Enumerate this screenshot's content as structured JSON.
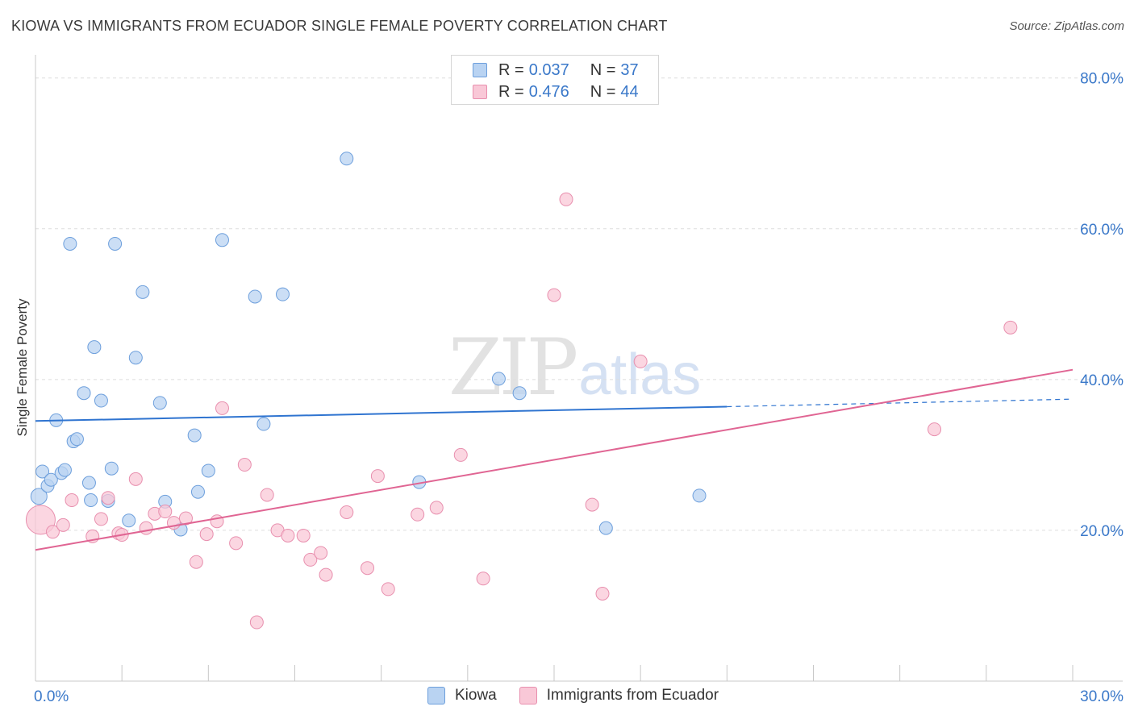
{
  "title": "KIOWA VS IMMIGRANTS FROM ECUADOR SINGLE FEMALE POVERTY CORRELATION CHART",
  "source": "Source: ZipAtlas.com",
  "watermark": {
    "part1": "ZIP",
    "part2": "atlas"
  },
  "legend_top": {
    "rows": [
      {
        "r_label": "R =",
        "r_value": "0.037",
        "n_label": "N =",
        "n_value": "37"
      },
      {
        "r_label": "R =",
        "r_value": "0.476",
        "n_label": "N =",
        "n_value": "44"
      }
    ]
  },
  "legend_bottom": {
    "items": [
      "Kiowa",
      "Immigrants from Ecuador"
    ]
  },
  "colors": {
    "kiowa_fill": "#b9d3f2",
    "kiowa_stroke": "#6d9fdc",
    "kiowa_line": "#2f74d0",
    "ecuador_fill": "#f9c8d7",
    "ecuador_stroke": "#e88fae",
    "ecuador_line": "#e06593",
    "tick_label": "#3a78c9",
    "grid": "#dedede"
  },
  "chart_data": {
    "type": "scatter",
    "title": "KIOWA VS IMMIGRANTS FROM ECUADOR SINGLE FEMALE POVERTY CORRELATION CHART",
    "xlabel": "",
    "ylabel": "Single Female Poverty",
    "xlim": [
      0,
      30
    ],
    "ylim": [
      0,
      82
    ],
    "x_tick_labels": [
      {
        "value": 0,
        "label": "0.0%"
      },
      {
        "value": 30,
        "label": "30.0%"
      }
    ],
    "y_tick_labels": [
      {
        "value": 20,
        "label": "20.0%"
      },
      {
        "value": 40,
        "label": "40.0%"
      },
      {
        "value": 60,
        "label": "60.0%"
      },
      {
        "value": 80,
        "label": "80.0%"
      }
    ],
    "series": [
      {
        "name": "Kiowa",
        "r": 0.037,
        "n": 37,
        "trend": {
          "x_start": 0,
          "y_start": 34.5,
          "x_solid_end": 20,
          "y_solid_end": 36.4,
          "x_end": 30,
          "y_end": 37.4
        },
        "points": [
          [
            0.1,
            24.5,
            10
          ],
          [
            0.2,
            27.8,
            8
          ],
          [
            0.35,
            25.9,
            8
          ],
          [
            0.45,
            26.7,
            8
          ],
          [
            0.6,
            34.6,
            8
          ],
          [
            0.75,
            27.6,
            8
          ],
          [
            0.85,
            28.0,
            8
          ],
          [
            1.0,
            58.0,
            8
          ],
          [
            1.1,
            31.8,
            8
          ],
          [
            1.2,
            32.1,
            8
          ],
          [
            1.4,
            38.2,
            8
          ],
          [
            1.55,
            26.3,
            8
          ],
          [
            1.6,
            24.0,
            8
          ],
          [
            1.7,
            44.3,
            8
          ],
          [
            1.9,
            37.2,
            8
          ],
          [
            2.1,
            23.9,
            8
          ],
          [
            2.2,
            28.2,
            8
          ],
          [
            2.3,
            58.0,
            8
          ],
          [
            2.7,
            21.3,
            8
          ],
          [
            2.9,
            42.9,
            8
          ],
          [
            3.1,
            51.6,
            8
          ],
          [
            3.6,
            36.9,
            8
          ],
          [
            3.75,
            23.8,
            8
          ],
          [
            4.2,
            20.1,
            8
          ],
          [
            4.6,
            32.6,
            8
          ],
          [
            4.7,
            25.1,
            8
          ],
          [
            5.0,
            27.9,
            8
          ],
          [
            5.4,
            58.5,
            8
          ],
          [
            6.35,
            51.0,
            8
          ],
          [
            6.6,
            34.1,
            8
          ],
          [
            7.15,
            51.3,
            8
          ],
          [
            9.0,
            69.3,
            8
          ],
          [
            11.1,
            26.4,
            8
          ],
          [
            13.4,
            40.1,
            8
          ],
          [
            14.0,
            38.2,
            8
          ],
          [
            16.5,
            20.3,
            8
          ],
          [
            19.2,
            24.6,
            8
          ]
        ]
      },
      {
        "name": "Immigrants from Ecuador",
        "r": 0.476,
        "n": 44,
        "trend": {
          "x_start": 0,
          "y_start": 17.4,
          "x_end": 30,
          "y_end": 41.3
        },
        "points": [
          [
            0.15,
            21.4,
            18
          ],
          [
            0.5,
            19.8,
            8
          ],
          [
            0.8,
            20.7,
            8
          ],
          [
            1.05,
            24.0,
            8
          ],
          [
            1.65,
            19.2,
            8
          ],
          [
            1.9,
            21.5,
            8
          ],
          [
            2.1,
            24.3,
            8
          ],
          [
            2.4,
            19.6,
            8
          ],
          [
            2.5,
            19.4,
            8
          ],
          [
            2.9,
            26.8,
            8
          ],
          [
            3.2,
            20.3,
            8
          ],
          [
            3.45,
            22.2,
            8
          ],
          [
            3.75,
            22.5,
            8
          ],
          [
            4.0,
            21.0,
            8
          ],
          [
            4.35,
            21.6,
            8
          ],
          [
            4.65,
            15.8,
            8
          ],
          [
            4.95,
            19.5,
            8
          ],
          [
            5.25,
            21.2,
            8
          ],
          [
            5.4,
            36.2,
            8
          ],
          [
            5.8,
            18.3,
            8
          ],
          [
            6.05,
            28.7,
            8
          ],
          [
            6.4,
            7.8,
            8
          ],
          [
            6.7,
            24.7,
            8
          ],
          [
            7.0,
            20.0,
            8
          ],
          [
            7.3,
            19.3,
            8
          ],
          [
            7.75,
            19.3,
            8
          ],
          [
            7.95,
            16.1,
            8
          ],
          [
            8.25,
            17.0,
            8
          ],
          [
            8.4,
            14.1,
            8
          ],
          [
            9.0,
            22.4,
            8
          ],
          [
            9.6,
            15.0,
            8
          ],
          [
            9.9,
            27.2,
            8
          ],
          [
            10.2,
            12.2,
            8
          ],
          [
            11.05,
            22.1,
            8
          ],
          [
            11.6,
            23.0,
            8
          ],
          [
            12.3,
            30.0,
            8
          ],
          [
            12.95,
            13.6,
            8
          ],
          [
            15.0,
            51.2,
            8
          ],
          [
            15.35,
            63.9,
            8
          ],
          [
            16.1,
            23.4,
            8
          ],
          [
            16.4,
            11.6,
            8
          ],
          [
            17.5,
            42.4,
            8
          ],
          [
            26.0,
            33.4,
            8
          ],
          [
            28.2,
            46.9,
            8
          ]
        ]
      }
    ]
  }
}
